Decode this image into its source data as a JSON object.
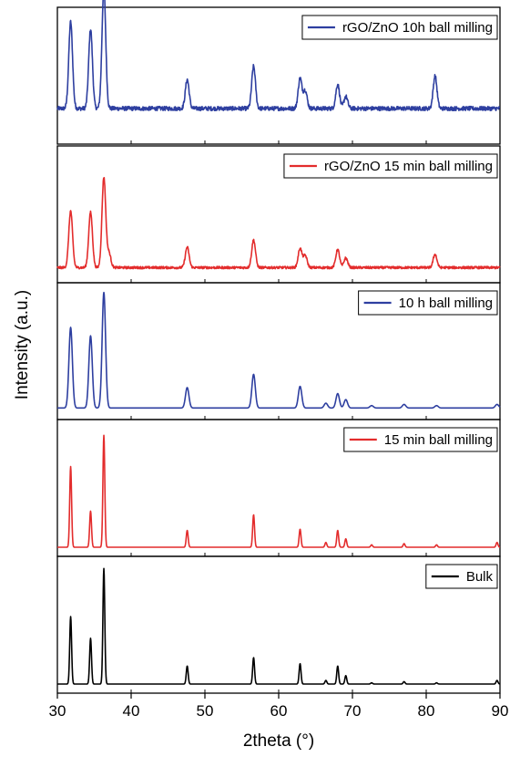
{
  "chart_data": {
    "type": "line",
    "layout": "stacked-panels",
    "xlabel": "2theta (°)",
    "ylabel": "Intensity (a.u.)",
    "xlim": [
      30,
      90
    ],
    "x_ticks": [
      30,
      40,
      50,
      60,
      70,
      80,
      90
    ],
    "grid": false,
    "legend_placement": "top-right",
    "panels": [
      {
        "series": [
          {
            "name": "rGO/ZnO 10h ball milling",
            "color": "#2e3fa0",
            "baseline": 0.22,
            "noise": 0.035,
            "peaks": [
              {
                "x": 31.8,
                "h": 0.72
              },
              {
                "x": 34.5,
                "h": 0.66
              },
              {
                "x": 36.3,
                "h": 1.0
              },
              {
                "x": 47.6,
                "h": 0.24
              },
              {
                "x": 56.6,
                "h": 0.35
              },
              {
                "x": 62.9,
                "h": 0.25
              },
              {
                "x": 63.6,
                "h": 0.15
              },
              {
                "x": 68.0,
                "h": 0.2
              },
              {
                "x": 69.1,
                "h": 0.1
              },
              {
                "x": 81.2,
                "h": 0.27
              }
            ]
          }
        ]
      },
      {
        "series": [
          {
            "name": "rGO/ZnO 15 min ball milling",
            "color": "#e32c2c",
            "baseline": 0.05,
            "noise": 0.02,
            "peaks": [
              {
                "x": 31.8,
                "h": 0.47
              },
              {
                "x": 34.5,
                "h": 0.46
              },
              {
                "x": 36.3,
                "h": 0.75
              },
              {
                "x": 37.0,
                "h": 0.12
              },
              {
                "x": 47.6,
                "h": 0.17
              },
              {
                "x": 56.6,
                "h": 0.23
              },
              {
                "x": 62.9,
                "h": 0.16
              },
              {
                "x": 63.6,
                "h": 0.1
              },
              {
                "x": 68.0,
                "h": 0.15
              },
              {
                "x": 69.1,
                "h": 0.08
              },
              {
                "x": 81.2,
                "h": 0.11
              }
            ]
          }
        ]
      },
      {
        "series": [
          {
            "name": "10 h ball milling",
            "color": "#2e3fa0",
            "baseline": 0.02,
            "noise": 0.0,
            "peaks": [
              {
                "x": 31.8,
                "h": 0.67
              },
              {
                "x": 34.5,
                "h": 0.6
              },
              {
                "x": 36.3,
                "h": 0.96
              },
              {
                "x": 47.6,
                "h": 0.17
              },
              {
                "x": 56.6,
                "h": 0.28
              },
              {
                "x": 62.9,
                "h": 0.18
              },
              {
                "x": 66.4,
                "h": 0.04
              },
              {
                "x": 68.0,
                "h": 0.12
              },
              {
                "x": 69.1,
                "h": 0.07
              },
              {
                "x": 72.6,
                "h": 0.02
              },
              {
                "x": 77.0,
                "h": 0.03
              },
              {
                "x": 81.4,
                "h": 0.02
              },
              {
                "x": 89.6,
                "h": 0.03
              }
            ]
          }
        ]
      },
      {
        "series": [
          {
            "name": "15 min ball milling",
            "color": "#e32c2c",
            "baseline": 0.0,
            "noise": 0.0,
            "peaks": [
              {
                "x": 31.8,
                "h": 0.67
              },
              {
                "x": 34.5,
                "h": 0.3
              },
              {
                "x": 36.3,
                "h": 0.93
              },
              {
                "x": 47.6,
                "h": 0.14
              },
              {
                "x": 56.6,
                "h": 0.27
              },
              {
                "x": 62.9,
                "h": 0.15
              },
              {
                "x": 66.4,
                "h": 0.04
              },
              {
                "x": 68.0,
                "h": 0.14
              },
              {
                "x": 69.1,
                "h": 0.07
              },
              {
                "x": 72.6,
                "h": 0.02
              },
              {
                "x": 77.0,
                "h": 0.03
              },
              {
                "x": 81.4,
                "h": 0.02
              },
              {
                "x": 89.6,
                "h": 0.04
              }
            ]
          }
        ]
      },
      {
        "series": [
          {
            "name": "Bulk",
            "color": "#000000",
            "baseline": 0.0,
            "noise": 0.0,
            "peaks": [
              {
                "x": 31.8,
                "h": 0.56
              },
              {
                "x": 34.5,
                "h": 0.38
              },
              {
                "x": 36.3,
                "h": 0.96
              },
              {
                "x": 47.6,
                "h": 0.15
              },
              {
                "x": 56.6,
                "h": 0.22
              },
              {
                "x": 62.9,
                "h": 0.17
              },
              {
                "x": 66.4,
                "h": 0.03
              },
              {
                "x": 68.0,
                "h": 0.15
              },
              {
                "x": 69.1,
                "h": 0.07
              },
              {
                "x": 72.6,
                "h": 0.01
              },
              {
                "x": 77.0,
                "h": 0.02
              },
              {
                "x": 81.4,
                "h": 0.01
              },
              {
                "x": 89.6,
                "h": 0.03
              }
            ]
          }
        ]
      }
    ]
  }
}
